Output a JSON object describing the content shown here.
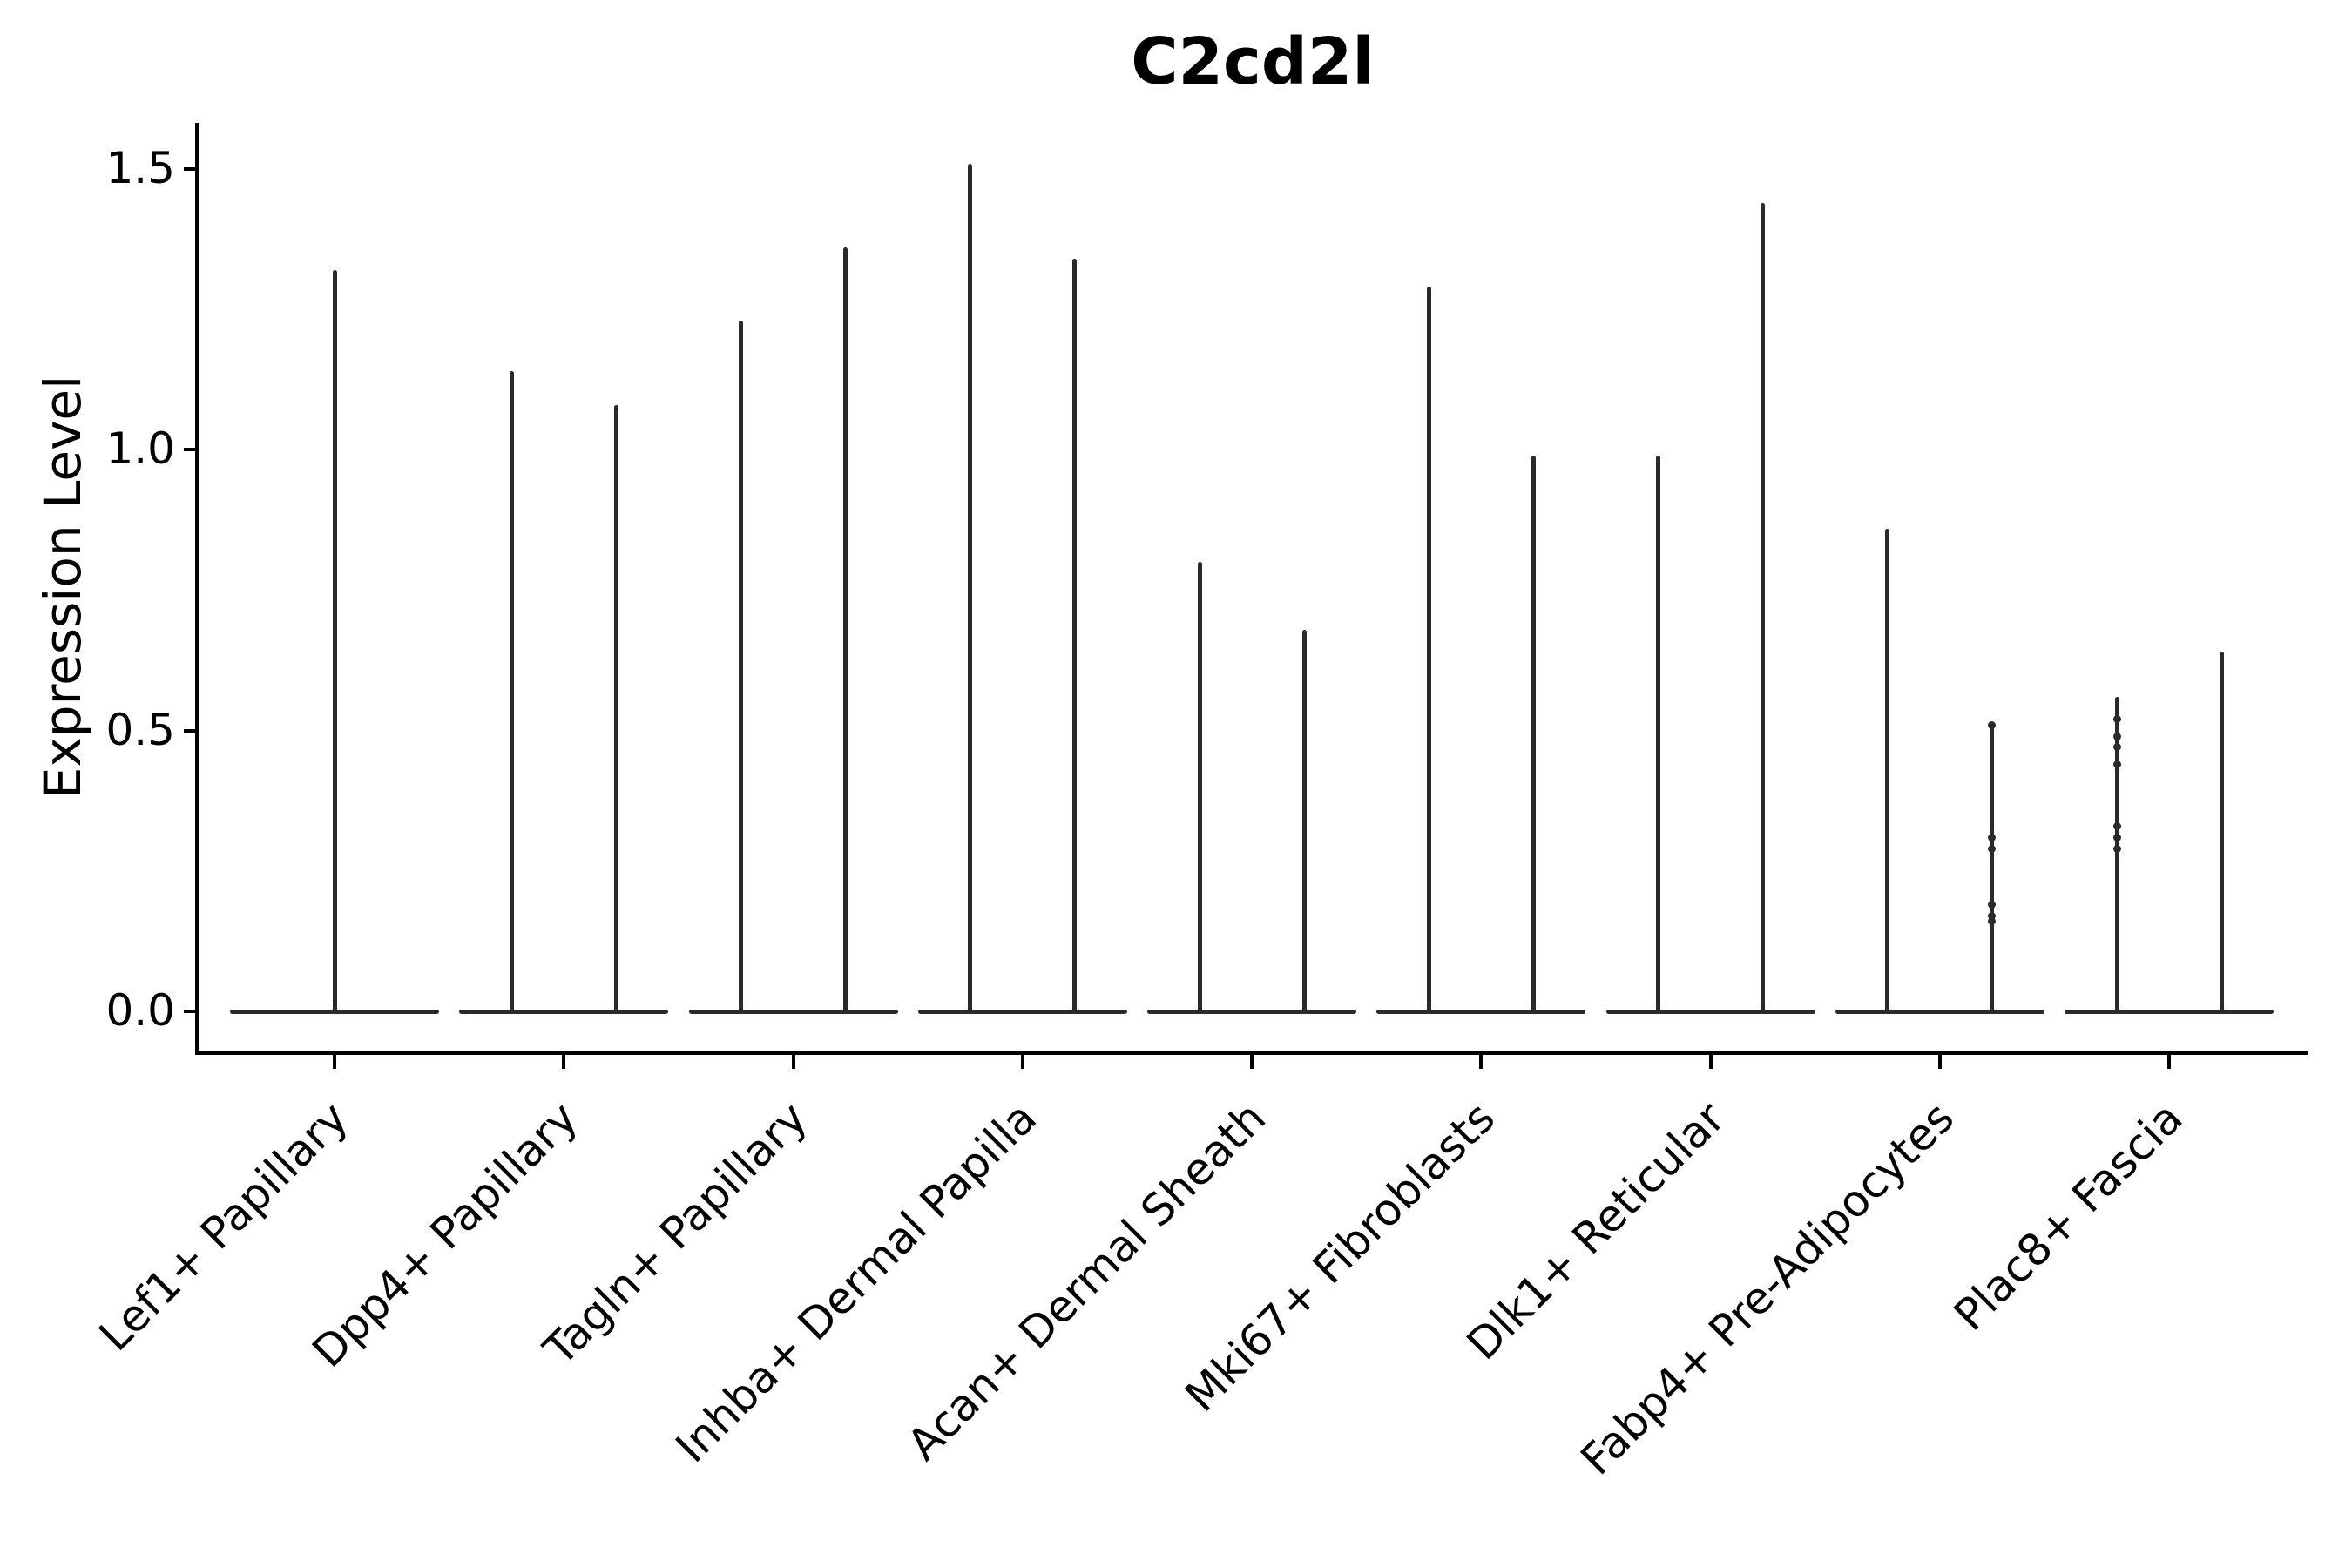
{
  "chart_data": {
    "type": "violin",
    "title": "C2cd2l",
    "ylabel": "Expression Level",
    "xlabel": "",
    "grid": false,
    "legend": "none",
    "x_tick_label_rotation_deg": 45,
    "ylim": [
      -0.07,
      1.58
    ],
    "ytick_values": [
      0.0,
      0.5,
      1.0,
      1.5
    ],
    "ytick_labels": [
      "0.0",
      "0.5",
      "1.0",
      "1.5"
    ],
    "baseline_value": 0.0,
    "violin_color": "#2a2a2a",
    "axis_color": "#000000",
    "categories": [
      "Lef1+ Papillary",
      "Dpp4+ Papillary",
      "Tagln+ Papillary",
      "Inhba+ Dermal Papilla",
      "Acan+ Dermal Sheath",
      "Mki67+ Fibroblasts",
      "Dlk1+ Reticular",
      "Fabp4+ Pre-Adipocytes",
      "Plac8+ Fascia"
    ],
    "violins": [
      {
        "category": "Lef1+ Papillary",
        "spikes": [
          {
            "position": "center",
            "max_expression": 1.32
          }
        ]
      },
      {
        "category": "Dpp4+ Papillary",
        "spikes": [
          {
            "position": "left",
            "max_expression": 1.14
          },
          {
            "position": "right",
            "max_expression": 1.08
          }
        ]
      },
      {
        "category": "Tagln+ Papillary",
        "spikes": [
          {
            "position": "left",
            "max_expression": 1.23
          },
          {
            "position": "right",
            "max_expression": 1.36
          }
        ]
      },
      {
        "category": "Inhba+ Dermal Papilla",
        "spikes": [
          {
            "position": "left",
            "max_expression": 1.51
          },
          {
            "position": "right",
            "max_expression": 1.34
          }
        ]
      },
      {
        "category": "Acan+ Dermal Sheath",
        "spikes": [
          {
            "position": "left",
            "max_expression": 0.8
          },
          {
            "position": "right",
            "max_expression": 0.68
          }
        ]
      },
      {
        "category": "Mki67+ Fibroblasts",
        "spikes": [
          {
            "position": "left",
            "max_expression": 1.29
          },
          {
            "position": "right",
            "max_expression": 0.99
          }
        ]
      },
      {
        "category": "Dlk1+ Reticular",
        "spikes": [
          {
            "position": "left",
            "max_expression": 0.99
          },
          {
            "position": "right",
            "max_expression": 1.44
          }
        ]
      },
      {
        "category": "Fabp4+ Pre-Adipocytes",
        "spikes": [
          {
            "position": "left",
            "max_expression": 0.86
          },
          {
            "position": "right",
            "max_expression": 0.51,
            "jitter_values": [
              0.51,
              0.31,
              0.29,
              0.19,
              0.17,
              0.16
            ]
          }
        ]
      },
      {
        "category": "Plac8+ Fascia",
        "spikes": [
          {
            "position": "left",
            "max_expression": 0.56,
            "jitter_values": [
              0.52,
              0.49,
              0.47,
              0.44,
              0.33,
              0.31,
              0.29
            ]
          },
          {
            "position": "right",
            "max_expression": 0.64
          }
        ]
      }
    ]
  }
}
